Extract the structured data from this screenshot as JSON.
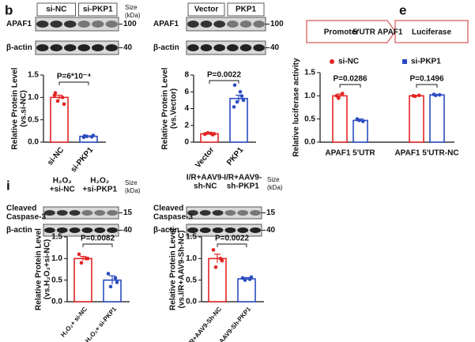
{
  "letters": [
    "b",
    "e",
    "i"
  ],
  "construct": [
    "Promoter",
    "5'UTR  APAF1",
    "Luciferase"
  ],
  "blots": [
    {
      "lanes": [
        [
          "si-NC"
        ],
        [
          "si-PKP1"
        ]
      ],
      "size": [
        "Size",
        "(kDa)"
      ],
      "rows": [
        {
          "label": [
            "APAF1"
          ],
          "size": "100"
        },
        {
          "label": [
            "β-actin"
          ],
          "size": "40"
        }
      ]
    },
    {
      "lanes": [
        [
          "Vector"
        ],
        [
          "PKP1"
        ]
      ],
      "size": [
        "Size",
        "(kDa)"
      ],
      "rows": [
        {
          "label": [
            "APAF1"
          ],
          "size": "100"
        },
        {
          "label": [
            "β-actin"
          ],
          "size": "40"
        }
      ]
    },
    {
      "lanes": [
        [
          "H₂O₂",
          "+si-NC"
        ],
        [
          "H₂O₂",
          "+si-PKP1"
        ]
      ],
      "size": [
        "Size",
        "(kDa)"
      ],
      "rows": [
        {
          "label": [
            "Cleaved",
            "Caspase-3"
          ],
          "size": "15"
        },
        {
          "label": [
            "β-actin"
          ],
          "size": "40"
        }
      ]
    },
    {
      "lanes": [
        [
          "I/R+AAV9-",
          "sh-NC"
        ],
        [
          "I/R+AAV9-",
          "sh-PKP1"
        ]
      ],
      "size": [
        "Size",
        "(kDa)"
      ],
      "rows": [
        {
          "label": [
            "Cleaved",
            "Caspase-3"
          ],
          "size": "15"
        },
        {
          "label": [
            "β-actin"
          ],
          "size": "40"
        }
      ]
    }
  ],
  "chart_data": [
    {
      "type": "bar",
      "ylabel": [
        "Relative Protein Level",
        "(vs.si-NC)"
      ],
      "categories": [
        "si-NC",
        "si-PKP1"
      ],
      "values": [
        1.0,
        0.13
      ],
      "errors": [
        0.05,
        0.01
      ],
      "points": [
        [
          1.1,
          1.0,
          0.92,
          0.85,
          1.05
        ],
        [
          0.14,
          0.12,
          0.13,
          0.15,
          0.11
        ]
      ],
      "colors": [
        "#e32424",
        "#2b4cc0"
      ],
      "ylim": [
        0,
        1.5
      ],
      "yticks": [
        {
          "value": 0,
          "label": "0.0"
        },
        {
          "value": 0.5,
          "label": "0.5"
        },
        {
          "value": 1,
          "label": "1.0"
        },
        {
          "value": 1.5,
          "label": "1.5"
        }
      ],
      "annotations": [
        "P=6*10⁻⁴"
      ]
    },
    {
      "type": "bar",
      "ylabel": [
        "Relative Protein Level",
        "(vs.Vector)"
      ],
      "categories": [
        "Vector",
        "PKP1"
      ],
      "values": [
        1.0,
        5.2
      ],
      "errors": [
        0.1,
        0.4
      ],
      "points": [
        [
          1.0,
          0.9,
          1.1,
          1.0,
          0.95,
          1.05
        ],
        [
          6.8,
          5.5,
          4.8,
          5.0,
          4.2,
          6.0
        ]
      ],
      "colors": [
        "#e32424",
        "#2b4cc0"
      ],
      "ylim": [
        0,
        8
      ],
      "yticks": [
        0,
        2,
        4,
        6,
        8
      ],
      "annotations": [
        "P=0.0022"
      ]
    },
    {
      "type": "grouped",
      "ylabel": [
        "Relative luciferase activity"
      ],
      "categories": [
        "APAF1 5'UTR",
        "APAF1 5'UTR-NC"
      ],
      "series": [
        {
          "name": "si-NC",
          "color": "#e32424",
          "values": [
            1.0,
            1.0
          ],
          "errors": [
            0.04,
            0.01
          ],
          "points": [
            [
              1.0,
              1.05,
              0.95
            ],
            [
              1.0,
              1.01,
              0.99
            ]
          ]
        },
        {
          "name": "si-PKP1",
          "color": "#2b4cc0",
          "values": [
            0.47,
            1.02
          ],
          "errors": [
            0.03,
            0.01
          ],
          "points": [
            [
              0.5,
              0.45,
              0.47
            ],
            [
              1.03,
              1.02,
              1.01
            ]
          ]
        }
      ],
      "ylim": [
        0,
        1.5
      ],
      "yticks": [
        {
          "value": 0,
          "label": "0.0"
        },
        {
          "value": 0.5,
          "label": "0.5"
        },
        {
          "value": 1,
          "label": "1.0"
        },
        {
          "value": 1.5,
          "label": "1.5"
        }
      ],
      "annotations": [
        "P=0.0286",
        "P=0.1496"
      ]
    },
    {
      "type": "bar",
      "ylabel": [
        "Relative Protein Level",
        "(vs.H₂O₂+si-NC)"
      ],
      "categories": [
        "H₂O₂+ si-NC",
        "H₂O₂+ si-PKP1"
      ],
      "values": [
        1.0,
        0.5
      ],
      "errors": [
        0.05,
        0.1
      ],
      "points": [
        [
          1.1,
          1.0,
          0.9,
          1.0
        ],
        [
          0.65,
          0.55,
          0.35,
          0.45
        ]
      ],
      "colors": [
        "#e32424",
        "#2b4cc0"
      ],
      "ylim": [
        0,
        1.5
      ],
      "yticks": [
        {
          "value": 0,
          "label": "0.0"
        },
        {
          "value": 0.5,
          "label": "0.5"
        },
        {
          "value": 1,
          "label": "1.0"
        },
        {
          "value": 1.5,
          "label": "1.5"
        }
      ],
      "annotations": [
        "P=0.0082"
      ]
    },
    {
      "type": "bar",
      "ylabel": [
        "Relative Protein Level",
        "(vs.I/R+AAV9-Sh-NC)"
      ],
      "categories": [
        "I/R+AAV9-Sh-NC",
        "I/R+AAV9-Sh-PKP1"
      ],
      "values": [
        1.0,
        0.53
      ],
      "errors": [
        0.1,
        0.03
      ],
      "points": [
        [
          1.2,
          1.0,
          0.8,
          0.95
        ],
        [
          0.55,
          0.52,
          0.5,
          0.57
        ]
      ],
      "colors": [
        "#e32424",
        "#2b4cc0"
      ],
      "ylim": [
        0,
        1.5
      ],
      "yticks": [
        {
          "value": 0,
          "label": "0.0"
        },
        {
          "value": 0.5,
          "label": "0.5"
        },
        {
          "value": 1,
          "label": "1.0"
        },
        {
          "value": 1.5,
          "label": "1.5"
        }
      ],
      "annotations": [
        "P=0.0022"
      ]
    }
  ]
}
